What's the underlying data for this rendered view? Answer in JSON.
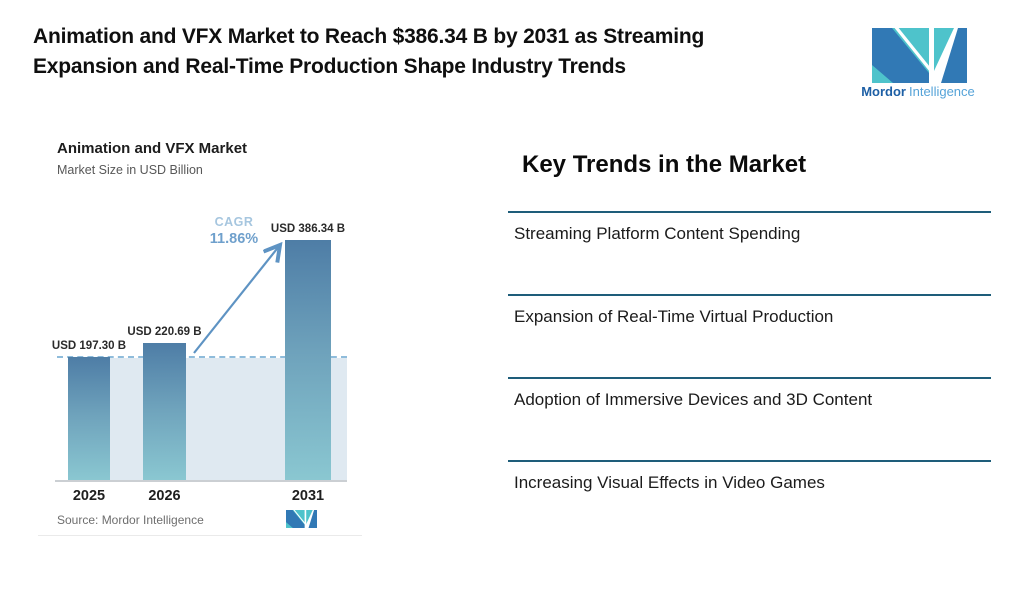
{
  "header": {
    "title_lines": [
      "Animation and VFX Market to Reach $386.34 B by 2031 as Streaming",
      "Expansion and Real-Time Production Shape Industry Trends"
    ],
    "logo": {
      "brand_bold": "Mordor",
      "brand_light": "Intelligence",
      "teal": "#4ec3cb",
      "blue": "#3179b5"
    }
  },
  "chart": {
    "title": "Animation and VFX Market",
    "subtitle": "Market Size in USD Billion",
    "cagr_label": "CAGR",
    "cagr_value": "11.86%",
    "source": "Source: Mordor Intelligence"
  },
  "chart_data": {
    "type": "bar",
    "title": "Animation and VFX Market",
    "subtitle": "Market Size in USD Billion",
    "categories": [
      "2025",
      "2026",
      "2031"
    ],
    "values": [
      197.3,
      220.69,
      386.34
    ],
    "value_labels": [
      "USD 197.30 B",
      "USD 220.69 B",
      "USD 386.34 B"
    ],
    "annotations": {
      "cagr_label": "CAGR",
      "cagr_value": "11.86%"
    },
    "ylim": [
      0,
      386.34
    ],
    "ylabel": "USD Billion",
    "xlabel": "",
    "grid": false,
    "legend": "none",
    "baseline_dashed_at": 197.3,
    "colors": {
      "bar_gradient_top": "#4e7da6",
      "bar_gradient_bottom": "#8ac7d1",
      "dashed_line": "#8fbcdb",
      "fill_area": "#dfe9f1",
      "arrow": "#5e93c3"
    }
  },
  "trends": {
    "heading": "Key Trends in the Market",
    "divider_color": "#1e5d7a",
    "items": [
      "Streaming Platform Content Spending",
      "Expansion of Real-Time Virtual Production",
      "Adoption of Immersive Devices and 3D Content",
      "Increasing Visual Effects in Video Games"
    ]
  }
}
